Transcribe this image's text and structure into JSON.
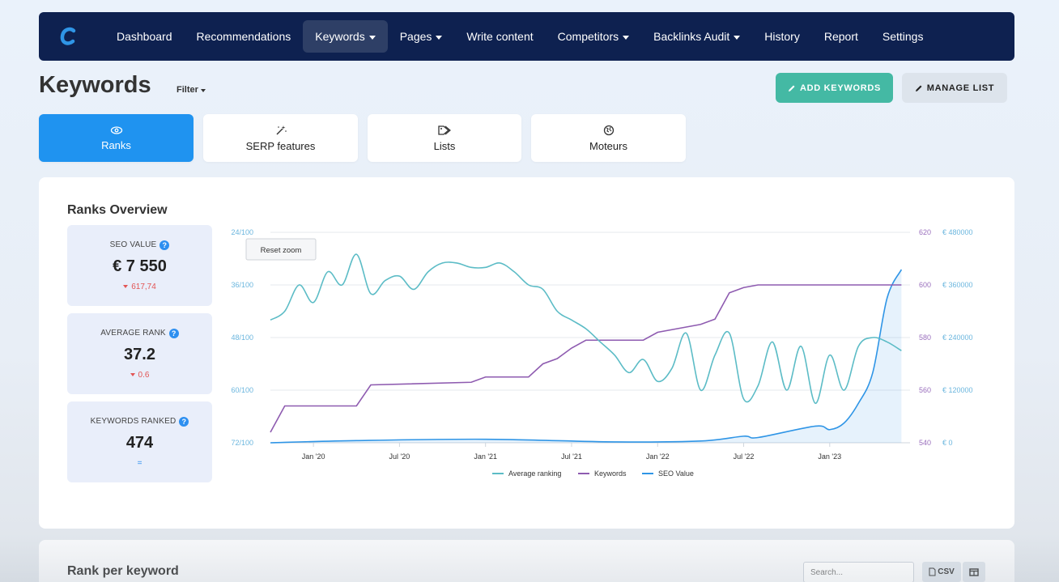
{
  "nav": {
    "items": [
      {
        "label": "Dashboard",
        "caret": false,
        "active": false
      },
      {
        "label": "Recommendations",
        "caret": false,
        "active": false
      },
      {
        "label": "Keywords",
        "caret": true,
        "active": true
      },
      {
        "label": "Pages",
        "caret": true,
        "active": false
      },
      {
        "label": "Write content",
        "caret": false,
        "active": false
      },
      {
        "label": "Competitors",
        "caret": true,
        "active": false
      },
      {
        "label": "Backlinks Audit",
        "caret": true,
        "active": false
      },
      {
        "label": "History",
        "caret": false,
        "active": false
      },
      {
        "label": "Report",
        "caret": false,
        "active": false
      },
      {
        "label": "Settings",
        "caret": false,
        "active": false
      }
    ]
  },
  "header": {
    "title": "Keywords",
    "filter_label": "Filter",
    "add_keywords_label": "ADD KEYWORDS",
    "manage_list_label": "MANAGE LIST"
  },
  "tabs": [
    {
      "label": "Ranks",
      "icon": "eye-icon",
      "active": true
    },
    {
      "label": "SERP features",
      "icon": "magic-wand-icon",
      "active": false
    },
    {
      "label": "Lists",
      "icon": "tags-icon",
      "active": false
    },
    {
      "label": "Moteurs",
      "icon": "globe-icon",
      "active": false
    }
  ],
  "overview": {
    "title": "Ranks Overview",
    "stats": [
      {
        "label": "SEO VALUE",
        "value": "€ 7 550",
        "change": "617,74",
        "direction": "down"
      },
      {
        "label": "AVERAGE RANK",
        "value": "37.2",
        "change": "0.6",
        "direction": "down"
      },
      {
        "label": "KEYWORDS RANKED",
        "value": "474",
        "change": "=",
        "direction": "neutral"
      }
    ]
  },
  "chart_data": {
    "type": "line",
    "reset_zoom_label": "Reset zoom",
    "x_tick_labels": [
      "Jan '20",
      "Jul '20",
      "Jan '21",
      "Jul '21",
      "Jan '22",
      "Jul '22",
      "Jan '23"
    ],
    "y_left_ticks": [
      "24/100",
      "36/100",
      "48/100",
      "60/100",
      "72/100"
    ],
    "y_right1_ticks": [
      "620",
      "600",
      "580",
      "560",
      "540"
    ],
    "y_right2_ticks": [
      "€ 480000",
      "€ 360000",
      "€ 240000",
      "€ 120000",
      "€ 0"
    ],
    "grid": true,
    "legend_position": "bottom",
    "colors": {
      "ranking": "#5cbcc6",
      "keywords": "#8e5bb0",
      "seo": "#2f95e6"
    },
    "series": [
      {
        "name": "Average ranking",
        "axis": "left",
        "x": [
          "2019-10",
          "2019-11",
          "2019-12",
          "2020-01",
          "2020-02",
          "2020-03",
          "2020-04",
          "2020-05",
          "2020-06",
          "2020-07",
          "2020-08",
          "2020-09",
          "2020-10",
          "2020-11",
          "2020-12",
          "2021-01",
          "2021-02",
          "2021-03",
          "2021-04",
          "2021-05",
          "2021-06",
          "2021-07",
          "2021-08",
          "2021-09",
          "2021-10",
          "2021-11",
          "2021-12",
          "2022-01",
          "2022-02",
          "2022-03",
          "2022-04",
          "2022-05",
          "2022-06",
          "2022-07",
          "2022-08",
          "2022-09",
          "2022-10",
          "2022-11",
          "2022-12",
          "2023-01",
          "2023-02",
          "2023-03",
          "2023-04",
          "2023-05",
          "2023-06"
        ],
        "values": [
          44,
          42,
          36,
          40,
          33,
          36,
          29,
          38,
          35,
          34,
          37,
          33,
          31,
          31,
          32,
          32,
          31,
          33,
          36,
          37,
          42,
          44,
          46,
          49,
          52,
          56,
          53,
          58,
          55,
          47,
          60,
          52,
          47,
          62,
          59,
          49,
          60,
          50,
          63,
          52,
          60,
          50,
          48,
          49,
          51
        ]
      },
      {
        "name": "Keywords",
        "axis": "right1",
        "x": [
          "2019-10",
          "2019-11",
          "2020-04",
          "2020-05",
          "2020-12",
          "2021-01",
          "2021-04",
          "2021-05",
          "2021-06",
          "2021-07",
          "2021-08",
          "2021-12",
          "2022-01",
          "2022-03",
          "2022-04",
          "2022-05",
          "2022-06",
          "2022-07",
          "2022-08",
          "2023-06"
        ],
        "values": [
          544,
          554,
          554,
          562,
          563,
          565,
          565,
          570,
          572,
          576,
          579,
          579,
          582,
          584,
          585,
          587,
          597,
          599,
          600,
          600
        ]
      },
      {
        "name": "SEO Value",
        "axis": "right2",
        "x": [
          "2019-10",
          "2020-04",
          "2021-01",
          "2021-10",
          "2022-04",
          "2022-07",
          "2022-08",
          "2022-12",
          "2023-01",
          "2023-02",
          "2023-03",
          "2023-04",
          "2023-05",
          "2023-06"
        ],
        "values": [
          0,
          5000,
          8000,
          2000,
          4000,
          15000,
          12000,
          38000,
          30000,
          45000,
          90000,
          160000,
          330000,
          395000
        ]
      }
    ]
  },
  "rank_table": {
    "title": "Rank per keyword",
    "search_placeholder": "Search...",
    "csv_label": "CSV"
  }
}
